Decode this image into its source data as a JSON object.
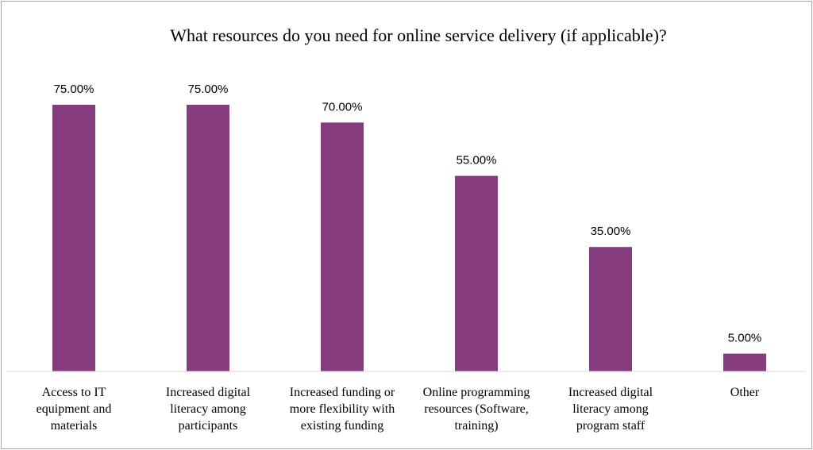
{
  "chart_data": {
    "type": "bar",
    "title": "What resources do you need for online service delivery (if applicable)?",
    "categories": [
      [
        "Access to IT",
        "equipment and",
        "materials"
      ],
      [
        "Increased digital",
        "literacy among",
        "participants"
      ],
      [
        "Increased funding or",
        "more flexibility with",
        "existing funding"
      ],
      [
        "Online programming",
        "resources (Software,",
        "training)"
      ],
      [
        "Increased digital",
        "literacy among",
        "program staff"
      ],
      [
        "Other"
      ]
    ],
    "values": [
      75,
      75,
      70,
      55,
      35,
      5
    ],
    "data_labels": [
      "75.00%",
      "75.00%",
      "70.00%",
      "55.00%",
      "35.00%",
      "5.00%"
    ],
    "ylim": [
      0,
      100
    ],
    "grid": false,
    "legend": "none",
    "bar_color": "#843c7f"
  }
}
